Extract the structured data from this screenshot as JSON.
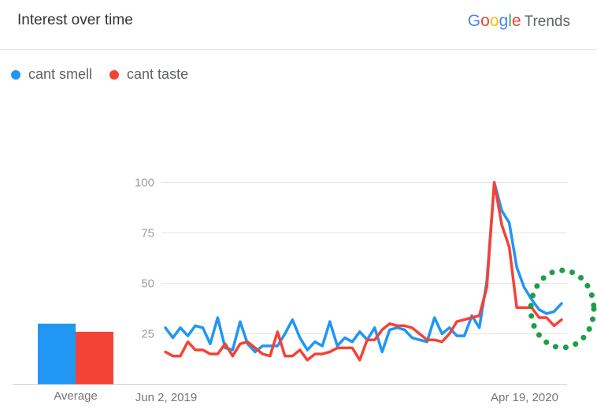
{
  "header": {
    "title": "Interest over time",
    "brand_letters": [
      {
        "ch": "G",
        "color": "#4285F4"
      },
      {
        "ch": "o",
        "color": "#EA4335"
      },
      {
        "ch": "o",
        "color": "#FBBC05"
      },
      {
        "ch": "g",
        "color": "#4285F4"
      },
      {
        "ch": "l",
        "color": "#34A853"
      },
      {
        "ch": "e",
        "color": "#EA4335"
      }
    ],
    "brand_suffix": "Trends"
  },
  "chart_data": {
    "type": "line",
    "title": "",
    "xlabel": "",
    "ylabel": "",
    "ylim": [
      0,
      100
    ],
    "yticks": [
      25,
      50,
      75,
      100
    ],
    "x_start_label": "Jun 2, 2019",
    "x_end_label": "Apr 19, 2020",
    "grid": true,
    "legend_position": "top-left",
    "series": [
      {
        "name": "cant smell",
        "color": "#2196F3",
        "values": [
          28,
          23,
          28,
          24,
          29,
          28,
          20,
          33,
          18,
          17,
          31,
          20,
          16,
          19,
          19,
          19,
          25,
          32,
          23,
          17,
          21,
          19,
          31,
          19,
          23,
          21,
          26,
          22,
          28,
          16,
          27,
          28,
          27,
          23,
          22,
          21,
          33,
          25,
          28,
          24,
          24,
          34,
          28,
          51,
          100,
          86,
          80,
          58,
          48,
          42,
          37,
          35,
          36,
          40
        ]
      },
      {
        "name": "cant taste",
        "color": "#F44336",
        "values": [
          16,
          14,
          14,
          21,
          17,
          17,
          15,
          15,
          20,
          14,
          20,
          21,
          18,
          15,
          14,
          26,
          14,
          14,
          17,
          12,
          15,
          15,
          16,
          18,
          18,
          18,
          12,
          22,
          22,
          27,
          30,
          29,
          29,
          28,
          25,
          22,
          22,
          21,
          25,
          31,
          32,
          33,
          34,
          48,
          100,
          79,
          68,
          38,
          38,
          38,
          33,
          33,
          29,
          32
        ]
      }
    ],
    "average_bars": {
      "label": "Average",
      "values": [
        30,
        26
      ]
    }
  },
  "annotation": {
    "type": "dotted-circle",
    "color": "#1E9E46"
  }
}
